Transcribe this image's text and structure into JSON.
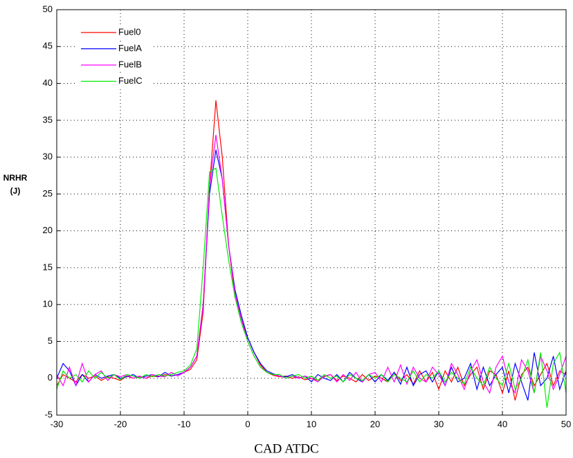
{
  "chart_data": {
    "type": "line",
    "ylabel": [
      "NRHR",
      "(J)"
    ],
    "xlabel": "CAD ATDC",
    "x": [
      -30,
      -29,
      -28,
      -27,
      -26,
      -25,
      -24,
      -23,
      -22,
      -21,
      -20,
      -19,
      -18,
      -17,
      -16,
      -15,
      -14,
      -13,
      -12,
      -11,
      -10,
      -9,
      -8,
      -7,
      -6,
      -5,
      -4,
      -3,
      -2,
      -1,
      0,
      1,
      2,
      3,
      4,
      5,
      6,
      7,
      8,
      9,
      10,
      11,
      12,
      13,
      14,
      15,
      16,
      17,
      18,
      19,
      20,
      21,
      22,
      23,
      24,
      25,
      26,
      27,
      28,
      29,
      30,
      31,
      32,
      33,
      34,
      35,
      36,
      37,
      38,
      39,
      40,
      41,
      42,
      43,
      44,
      45,
      46,
      47,
      48,
      49,
      50
    ],
    "series": [
      {
        "name": "Fuel0",
        "color": "#ff0000",
        "values": [
          -1,
          0.5,
          0,
          -0.5,
          0.5,
          0,
          0.3,
          -0.3,
          0.2,
          0,
          -0.3,
          0.3,
          0,
          0.2,
          0,
          0.3,
          0.2,
          0.5,
          0.3,
          0.5,
          0.8,
          1.2,
          2.5,
          9,
          26,
          37.7,
          30,
          18,
          11,
          8,
          5.5,
          3.5,
          1.8,
          0.8,
          0.4,
          0.2,
          0.3,
          0,
          0.2,
          -0.2,
          0,
          -0.3,
          0.2,
          0.5,
          -0.3,
          0.3,
          0,
          -0.5,
          0.5,
          -0.3,
          0.3,
          0,
          -0.5,
          0.8,
          -0.3,
          0.5,
          -0.8,
          1,
          -0.5,
          0.8,
          -1.5,
          1,
          -0.5,
          1.5,
          -1,
          0.5,
          1.5,
          -1.5,
          1,
          0.5,
          -2,
          1,
          -3,
          0.5,
          1.5,
          -1,
          0.5,
          2,
          -1,
          1,
          0.5
        ]
      },
      {
        "name": "FuelA",
        "color": "#0000ff",
        "values": [
          0,
          2,
          1,
          -1,
          0.5,
          -0.5,
          0.5,
          0,
          0.3,
          0.5,
          0,
          0.2,
          0.5,
          0,
          0.3,
          0.5,
          0.2,
          0.8,
          0.3,
          0.5,
          0.8,
          1.5,
          3,
          10,
          25,
          31,
          27,
          18,
          12,
          8.5,
          5.5,
          3.5,
          2,
          1,
          0.6,
          0.3,
          0.2,
          0.5,
          0,
          0.3,
          -0.5,
          0.5,
          0,
          -0.3,
          0.5,
          -0.5,
          0.8,
          0,
          -0.5,
          0.5,
          -0.5,
          0.5,
          -0.3,
          0.8,
          -0.8,
          1.5,
          -1,
          0.5,
          1,
          -0.5,
          1,
          -1,
          1.5,
          -0.5,
          0,
          2,
          -1.5,
          1.5,
          -1,
          0.5,
          1.5,
          -2,
          2,
          -0.5,
          -3,
          3.5,
          -1,
          0,
          3,
          -1.5,
          1
        ]
      },
      {
        "name": "FuelB",
        "color": "#ff00ff",
        "values": [
          0.5,
          -1,
          1.5,
          -1,
          2,
          -0.5,
          0.5,
          1,
          -0.3,
          0.5,
          0.2,
          0.5,
          0,
          0.3,
          0,
          0.5,
          0.3,
          0.2,
          0.8,
          0.3,
          0.8,
          1.5,
          3,
          10,
          26,
          33,
          27,
          18,
          11.5,
          8,
          5,
          3,
          1.5,
          0.8,
          0.5,
          0.3,
          0,
          0.3,
          0,
          0.3,
          0,
          -0.5,
          0.3,
          0.5,
          -0.5,
          0.5,
          -0.3,
          0.8,
          -0.5,
          0.5,
          0.8,
          -0.5,
          1.5,
          -0.5,
          1.8,
          -0.8,
          1.5,
          0,
          -0.5,
          1.5,
          0.5,
          -1,
          2,
          0.5,
          -1.5,
          1,
          2.5,
          -0.5,
          -2,
          1.5,
          3,
          -0.5,
          -2,
          2.5,
          1,
          -2,
          3,
          1,
          -1.5,
          0.5,
          3
        ]
      },
      {
        "name": "FuelC",
        "color": "#00ee00",
        "values": [
          -1.5,
          1,
          0,
          0.5,
          -0.5,
          1,
          0,
          0.8,
          0,
          0.5,
          -0.2,
          0.5,
          0.3,
          0,
          0.5,
          0.2,
          0.5,
          0.3,
          0.5,
          0.8,
          1,
          1.8,
          4,
          15,
          28,
          28.5,
          22,
          16,
          11,
          7.5,
          5,
          3,
          1.5,
          0.8,
          0.5,
          0.5,
          0,
          0.3,
          0.5,
          0,
          0.3,
          -0.3,
          0.5,
          0,
          0.3,
          -0.5,
          0.5,
          0,
          -0.3,
          0.5,
          0,
          0.5,
          -0.5,
          0.5,
          0,
          -0.5,
          1,
          -0.5,
          0.5,
          0,
          1,
          -0.5,
          0.8,
          0,
          -0.8,
          1.5,
          0,
          -1,
          1.5,
          0,
          -1,
          2,
          -1.5,
          0,
          2.5,
          -2,
          3.5,
          -4,
          2,
          3.5,
          -2
        ]
      }
    ],
    "xlim": [
      -30,
      50
    ],
    "xticks": [
      -30,
      -20,
      -10,
      0,
      10,
      20,
      30,
      40,
      50
    ],
    "ylim": [
      -5,
      50
    ],
    "yticks": [
      -5,
      0,
      5,
      10,
      15,
      20,
      25,
      30,
      35,
      40,
      45,
      50
    ],
    "grid": true,
    "legend": "upper left"
  }
}
